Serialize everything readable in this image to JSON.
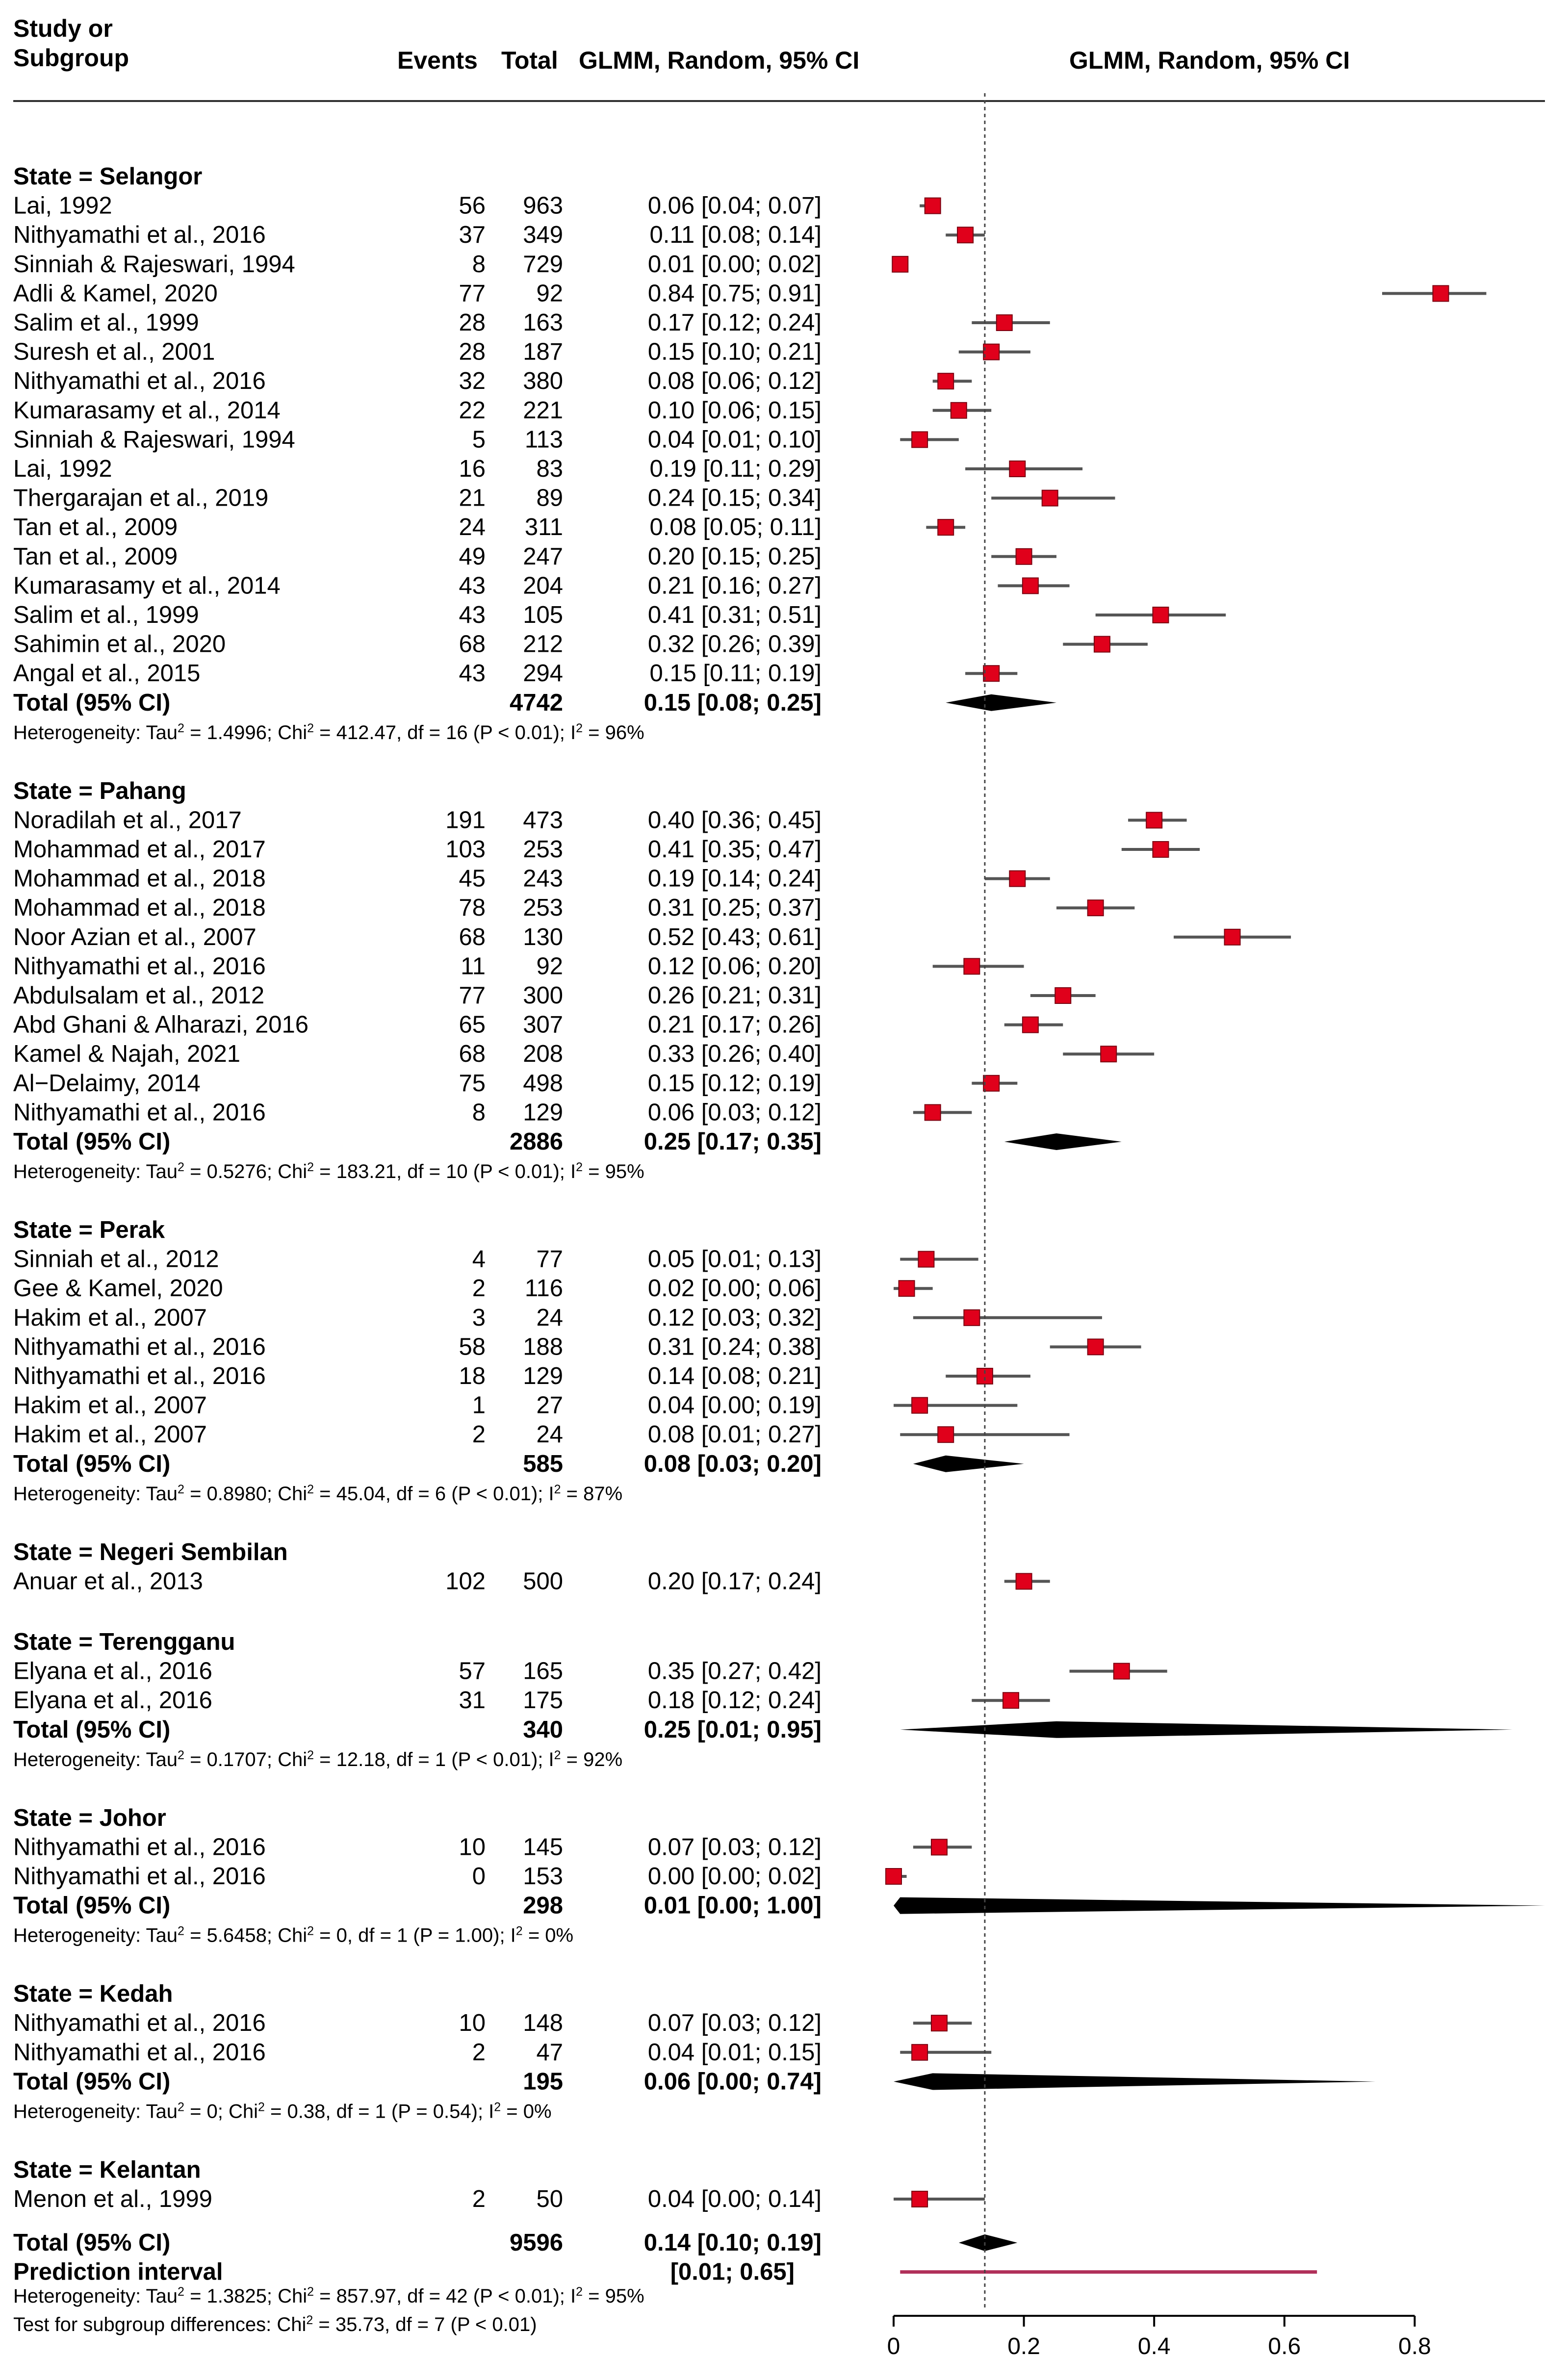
{
  "header": {
    "study_line1": "Study or",
    "study_line2": "Subgroup",
    "events": "Events",
    "total": "Total",
    "ci_col": "GLMM, Random, 95% CI",
    "plot_col": "GLMM, Random, 95% CI"
  },
  "chart_data": {
    "type": "forest",
    "xlim": [
      0,
      1
    ],
    "x_ticks": [
      "0",
      "0.2",
      "0.4",
      "0.6",
      "0.8"
    ],
    "x_tick_values": [
      0,
      0.2,
      0.4,
      0.6,
      0.8
    ],
    "overall_estimate": 0.14,
    "colors": {
      "study_box": "#e0001b",
      "summary": "#000000",
      "prediction": "#b0305a",
      "ci_line": "#555555"
    },
    "groups": [
      {
        "title": "State = Selangor",
        "studies": [
          {
            "name": "Lai, 1992",
            "events": "56",
            "total": "963",
            "ci": "0.06 [0.04; 0.07]",
            "est": 0.06,
            "lo": 0.04,
            "hi": 0.07
          },
          {
            "name": "Nithyamathi et al., 2016",
            "events": "37",
            "total": "349",
            "ci": "0.11 [0.08; 0.14]",
            "est": 0.11,
            "lo": 0.08,
            "hi": 0.14
          },
          {
            "name": "Sinniah & Rajeswari, 1994",
            "events": "8",
            "total": "729",
            "ci": "0.01 [0.00; 0.02]",
            "est": 0.01,
            "lo": 0.0,
            "hi": 0.02
          },
          {
            "name": "Adli & Kamel, 2020",
            "events": "77",
            "total": "92",
            "ci": "0.84 [0.75; 0.91]",
            "est": 0.84,
            "lo": 0.75,
            "hi": 0.91
          },
          {
            "name": "Salim et al., 1999",
            "events": "28",
            "total": "163",
            "ci": "0.17 [0.12; 0.24]",
            "est": 0.17,
            "lo": 0.12,
            "hi": 0.24
          },
          {
            "name": "Suresh et al., 2001",
            "events": "28",
            "total": "187",
            "ci": "0.15 [0.10; 0.21]",
            "est": 0.15,
            "lo": 0.1,
            "hi": 0.21
          },
          {
            "name": "Nithyamathi et al., 2016",
            "events": "32",
            "total": "380",
            "ci": "0.08 [0.06; 0.12]",
            "est": 0.08,
            "lo": 0.06,
            "hi": 0.12
          },
          {
            "name": "Kumarasamy et al., 2014",
            "events": "22",
            "total": "221",
            "ci": "0.10 [0.06; 0.15]",
            "est": 0.1,
            "lo": 0.06,
            "hi": 0.15
          },
          {
            "name": "Sinniah & Rajeswari, 1994",
            "events": "5",
            "total": "113",
            "ci": "0.04 [0.01; 0.10]",
            "est": 0.04,
            "lo": 0.01,
            "hi": 0.1
          },
          {
            "name": "Lai, 1992",
            "events": "16",
            "total": "83",
            "ci": "0.19 [0.11; 0.29]",
            "est": 0.19,
            "lo": 0.11,
            "hi": 0.29
          },
          {
            "name": "Thergarajan et al., 2019",
            "events": "21",
            "total": "89",
            "ci": "0.24 [0.15; 0.34]",
            "est": 0.24,
            "lo": 0.15,
            "hi": 0.34
          },
          {
            "name": "Tan et al., 2009",
            "events": "24",
            "total": "311",
            "ci": "0.08 [0.05; 0.11]",
            "est": 0.08,
            "lo": 0.05,
            "hi": 0.11
          },
          {
            "name": "Tan et al., 2009",
            "events": "49",
            "total": "247",
            "ci": "0.20 [0.15; 0.25]",
            "est": 0.2,
            "lo": 0.15,
            "hi": 0.25
          },
          {
            "name": "Kumarasamy et al., 2014",
            "events": "43",
            "total": "204",
            "ci": "0.21 [0.16; 0.27]",
            "est": 0.21,
            "lo": 0.16,
            "hi": 0.27
          },
          {
            "name": "Salim et al., 1999",
            "events": "43",
            "total": "105",
            "ci": "0.41 [0.31; 0.51]",
            "est": 0.41,
            "lo": 0.31,
            "hi": 0.51
          },
          {
            "name": "Sahimin et al., 2020",
            "events": "68",
            "total": "212",
            "ci": "0.32 [0.26; 0.39]",
            "est": 0.32,
            "lo": 0.26,
            "hi": 0.39
          },
          {
            "name": "Angal et al., 2015",
            "events": "43",
            "total": "294",
            "ci": "0.15 [0.11; 0.19]",
            "est": 0.15,
            "lo": 0.11,
            "hi": 0.19
          }
        ],
        "total": {
          "label": "Total (95% CI)",
          "n": "4742",
          "ci": "0.15 [0.08; 0.25]",
          "est": 0.15,
          "lo": 0.08,
          "hi": 0.25
        },
        "het": "Heterogeneity: Tau² = 1.4996; Chi² = 412.47, df = 16 (P < 0.01); I² = 96%"
      },
      {
        "title": "State = Pahang",
        "studies": [
          {
            "name": "Noradilah et al., 2017",
            "events": "191",
            "total": "473",
            "ci": "0.40 [0.36; 0.45]",
            "est": 0.4,
            "lo": 0.36,
            "hi": 0.45
          },
          {
            "name": "Mohammad et al., 2017",
            "events": "103",
            "total": "253",
            "ci": "0.41 [0.35; 0.47]",
            "est": 0.41,
            "lo": 0.35,
            "hi": 0.47
          },
          {
            "name": "Mohammad et al., 2018",
            "events": "45",
            "total": "243",
            "ci": "0.19 [0.14; 0.24]",
            "est": 0.19,
            "lo": 0.14,
            "hi": 0.24
          },
          {
            "name": "Mohammad et al., 2018",
            "events": "78",
            "total": "253",
            "ci": "0.31 [0.25; 0.37]",
            "est": 0.31,
            "lo": 0.25,
            "hi": 0.37
          },
          {
            "name": "Noor Azian et al., 2007",
            "events": "68",
            "total": "130",
            "ci": "0.52 [0.43; 0.61]",
            "est": 0.52,
            "lo": 0.43,
            "hi": 0.61
          },
          {
            "name": "Nithyamathi et al., 2016",
            "events": "11",
            "total": "92",
            "ci": "0.12 [0.06; 0.20]",
            "est": 0.12,
            "lo": 0.06,
            "hi": 0.2
          },
          {
            "name": "Abdulsalam et al., 2012",
            "events": "77",
            "total": "300",
            "ci": "0.26 [0.21; 0.31]",
            "est": 0.26,
            "lo": 0.21,
            "hi": 0.31
          },
          {
            "name": "Abd Ghani & Alharazi, 2016",
            "events": "65",
            "total": "307",
            "ci": "0.21 [0.17; 0.26]",
            "est": 0.21,
            "lo": 0.17,
            "hi": 0.26
          },
          {
            "name": "Kamel & Najah, 2021",
            "events": "68",
            "total": "208",
            "ci": "0.33 [0.26; 0.40]",
            "est": 0.33,
            "lo": 0.26,
            "hi": 0.4
          },
          {
            "name": "Al−Delaimy, 2014",
            "events": "75",
            "total": "498",
            "ci": "0.15 [0.12; 0.19]",
            "est": 0.15,
            "lo": 0.12,
            "hi": 0.19
          },
          {
            "name": "Nithyamathi et al., 2016",
            "events": "8",
            "total": "129",
            "ci": "0.06 [0.03; 0.12]",
            "est": 0.06,
            "lo": 0.03,
            "hi": 0.12
          }
        ],
        "total": {
          "label": "Total (95% CI)",
          "n": "2886",
          "ci": "0.25 [0.17; 0.35]",
          "est": 0.25,
          "lo": 0.17,
          "hi": 0.35
        },
        "het": "Heterogeneity: Tau² = 0.5276; Chi² = 183.21, df = 10 (P < 0.01); I² = 95%"
      },
      {
        "title": "State = Perak",
        "studies": [
          {
            "name": "Sinniah et al., 2012",
            "events": "4",
            "total": "77",
            "ci": "0.05 [0.01; 0.13]",
            "est": 0.05,
            "lo": 0.01,
            "hi": 0.13
          },
          {
            "name": "Gee & Kamel, 2020",
            "events": "2",
            "total": "116",
            "ci": "0.02 [0.00; 0.06]",
            "est": 0.02,
            "lo": 0.0,
            "hi": 0.06
          },
          {
            "name": "Hakim et al., 2007",
            "events": "3",
            "total": "24",
            "ci": "0.12 [0.03; 0.32]",
            "est": 0.12,
            "lo": 0.03,
            "hi": 0.32
          },
          {
            "name": "Nithyamathi et al., 2016",
            "events": "58",
            "total": "188",
            "ci": "0.31 [0.24; 0.38]",
            "est": 0.31,
            "lo": 0.24,
            "hi": 0.38
          },
          {
            "name": "Nithyamathi et al., 2016",
            "events": "18",
            "total": "129",
            "ci": "0.14 [0.08; 0.21]",
            "est": 0.14,
            "lo": 0.08,
            "hi": 0.21
          },
          {
            "name": "Hakim et al., 2007",
            "events": "1",
            "total": "27",
            "ci": "0.04 [0.00; 0.19]",
            "est": 0.04,
            "lo": 0.0,
            "hi": 0.19
          },
          {
            "name": "Hakim et al., 2007",
            "events": "2",
            "total": "24",
            "ci": "0.08 [0.01; 0.27]",
            "est": 0.08,
            "lo": 0.01,
            "hi": 0.27
          }
        ],
        "total": {
          "label": "Total (95% CI)",
          "n": "585",
          "ci": "0.08 [0.03; 0.20]",
          "est": 0.08,
          "lo": 0.03,
          "hi": 0.2
        },
        "het": "Heterogeneity: Tau² = 0.8980; Chi² = 45.04, df = 6 (P < 0.01); I² = 87%"
      },
      {
        "title": "State = Negeri Sembilan",
        "studies": [
          {
            "name": "Anuar et al., 2013",
            "events": "102",
            "total": "500",
            "ci": "0.20 [0.17; 0.24]",
            "est": 0.2,
            "lo": 0.17,
            "hi": 0.24
          }
        ]
      },
      {
        "title": "State = Terengganu",
        "studies": [
          {
            "name": "Elyana et al., 2016",
            "events": "57",
            "total": "165",
            "ci": "0.35 [0.27; 0.42]",
            "est": 0.35,
            "lo": 0.27,
            "hi": 0.42
          },
          {
            "name": "Elyana et al., 2016",
            "events": "31",
            "total": "175",
            "ci": "0.18 [0.12; 0.24]",
            "est": 0.18,
            "lo": 0.12,
            "hi": 0.24
          }
        ],
        "total": {
          "label": "Total (95% CI)",
          "n": "340",
          "ci": "0.25 [0.01; 0.95]",
          "est": 0.25,
          "lo": 0.01,
          "hi": 0.95
        },
        "het": "Heterogeneity: Tau² = 0.1707; Chi² = 12.18, df = 1 (P < 0.01); I² = 92%"
      },
      {
        "title": "State = Johor",
        "studies": [
          {
            "name": "Nithyamathi et al., 2016",
            "events": "10",
            "total": "145",
            "ci": "0.07 [0.03; 0.12]",
            "est": 0.07,
            "lo": 0.03,
            "hi": 0.12
          },
          {
            "name": "Nithyamathi et al., 2016",
            "events": "0",
            "total": "153",
            "ci": "0.00 [0.00; 0.02]",
            "est": 0.0,
            "lo": 0.0,
            "hi": 0.02
          }
        ],
        "total": {
          "label": "Total (95% CI)",
          "n": "298",
          "ci": "0.01 [0.00; 1.00]",
          "est": 0.01,
          "lo": 0.0,
          "hi": 1.0
        },
        "het": "Heterogeneity: Tau² = 5.6458; Chi² = 0, df = 1 (P = 1.00); I² = 0%"
      },
      {
        "title": "State = Kedah",
        "studies": [
          {
            "name": "Nithyamathi et al., 2016",
            "events": "10",
            "total": "148",
            "ci": "0.07 [0.03; 0.12]",
            "est": 0.07,
            "lo": 0.03,
            "hi": 0.12
          },
          {
            "name": "Nithyamathi et al., 2016",
            "events": "2",
            "total": "47",
            "ci": "0.04 [0.01; 0.15]",
            "est": 0.04,
            "lo": 0.01,
            "hi": 0.15
          }
        ],
        "total": {
          "label": "Total (95% CI)",
          "n": "195",
          "ci": "0.06 [0.00; 0.74]",
          "est": 0.06,
          "lo": 0.0,
          "hi": 0.74
        },
        "het": "Heterogeneity: Tau² = 0; Chi² = 0.38, df = 1 (P = 0.54); I² = 0%"
      },
      {
        "title": "State = Kelantan",
        "studies": [
          {
            "name": "Menon et al., 1999",
            "events": "2",
            "total": "50",
            "ci": "0.04 [0.00; 0.14]",
            "est": 0.04,
            "lo": 0.0,
            "hi": 0.14
          }
        ]
      }
    ],
    "overall": {
      "label": "Total (95% CI)",
      "n": "9596",
      "ci": "0.14 [0.10; 0.19]",
      "est": 0.14,
      "lo": 0.1,
      "hi": 0.19
    },
    "prediction": {
      "label": "Prediction interval",
      "ci": "[0.01; 0.65]",
      "lo": 0.01,
      "hi": 0.65
    },
    "overall_het": "Heterogeneity: Tau² = 1.3825; Chi² = 857.97, df = 42 (P < 0.01); I² = 95%",
    "subgroup_test": "Test for subgroup differences: Chi² = 35.73, df = 7 (P < 0.01)"
  }
}
